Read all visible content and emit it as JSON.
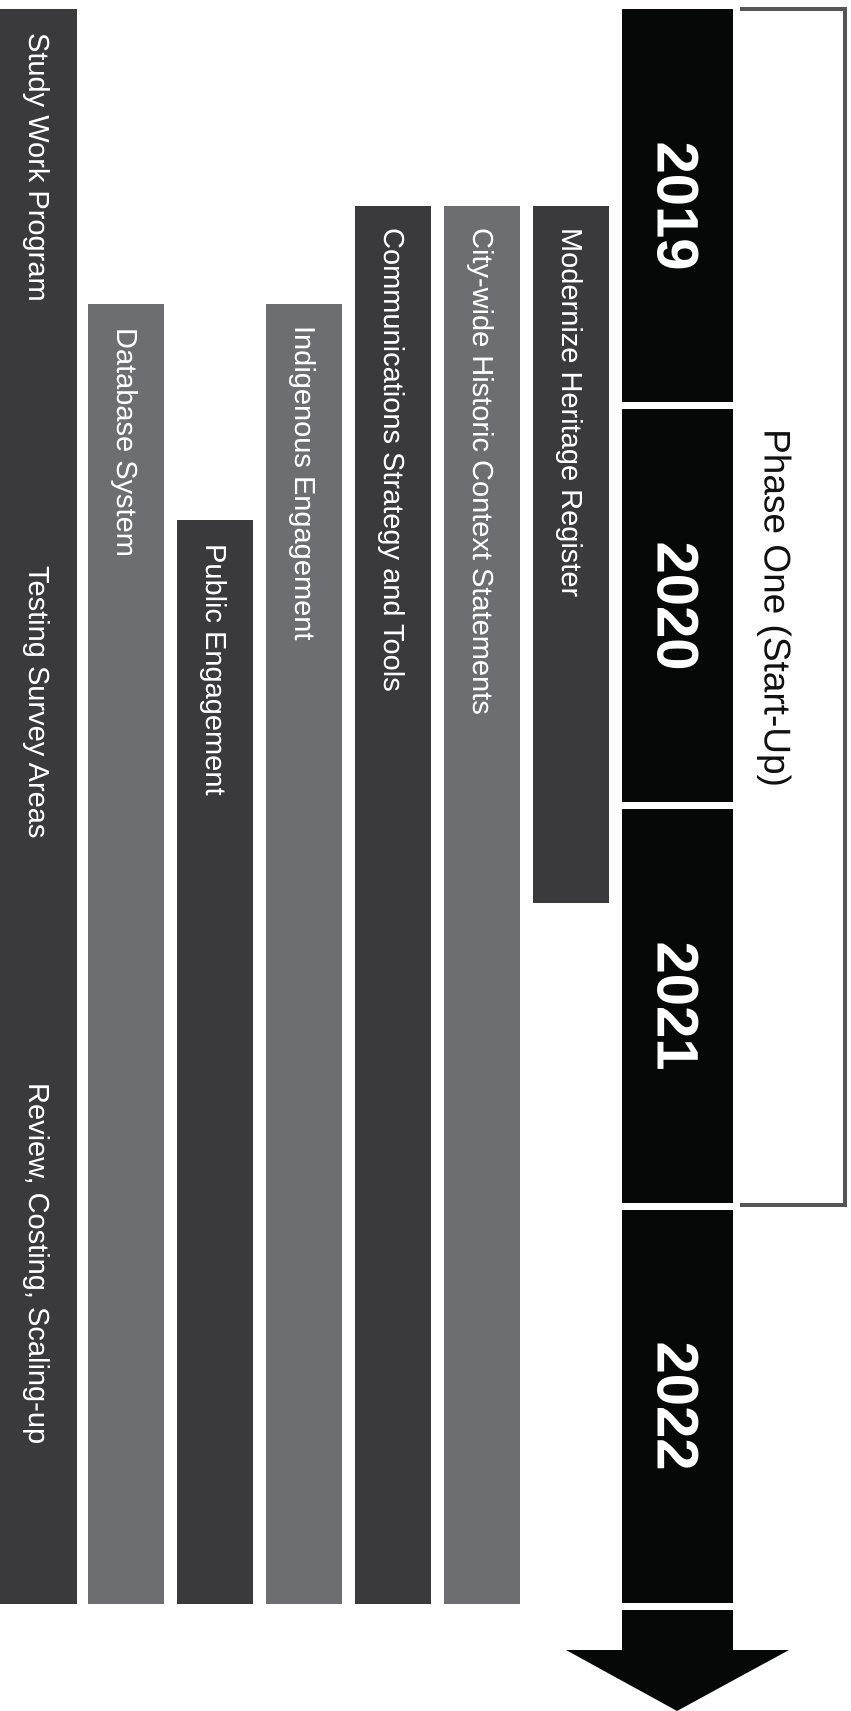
{
  "phase": {
    "label": "Phase One (Start-Up)"
  },
  "timeline": {
    "years": [
      "2019",
      "2020",
      "2021",
      "2022"
    ]
  },
  "tasks": [
    {
      "label": "Modernize Heritage Register",
      "shade": "dark"
    },
    {
      "label": "City-wide Historic Context Statements",
      "shade": "light"
    },
    {
      "label": "Communications Strategy and Tools",
      "shade": "dark"
    },
    {
      "label": "Indigenous Engagement",
      "shade": "light"
    },
    {
      "label": "Public Engagement",
      "shade": "dark"
    },
    {
      "label": "Database System",
      "shade": "light"
    },
    {
      "label": "Study Work Program",
      "shade": "dark"
    }
  ],
  "study_segments": [
    "Study Work Program",
    "Testing Survey Areas",
    "Review, Costing, Scaling-up"
  ],
  "colors": {
    "dark_bar": "#3a3a3c",
    "light_bar": "#6d6e71",
    "timeline": "#060808",
    "bracket": "#555555",
    "text": "#ffffff"
  }
}
